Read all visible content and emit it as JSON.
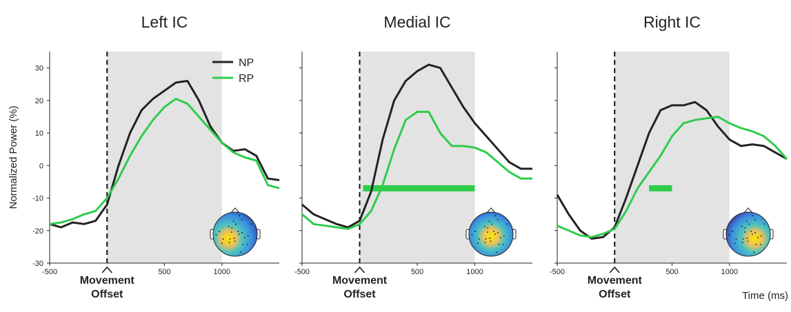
{
  "chart_data": [
    {
      "type": "line",
      "title": "Left IC",
      "ylabel": "Normalized Power (%)",
      "x": [
        -500,
        -400,
        -300,
        -200,
        -100,
        0,
        100,
        200,
        300,
        400,
        500,
        600,
        700,
        800,
        900,
        1000,
        1100,
        1200,
        1300,
        1400,
        1500
      ],
      "series": [
        {
          "name": "NP",
          "color": "#222222",
          "values": [
            -18,
            -19,
            -17.5,
            -18,
            -17,
            -12,
            0,
            10,
            17,
            20.5,
            23,
            25.5,
            26,
            20,
            12,
            7,
            4.5,
            5,
            3,
            -4,
            -4.5
          ]
        },
        {
          "name": "RP",
          "color": "#2ecc4a",
          "values": [
            -18,
            -17.5,
            -16.5,
            -15,
            -14,
            -10,
            -4,
            3,
            9,
            14,
            18,
            20.5,
            19,
            15,
            11,
            7,
            4,
            2.5,
            1.5,
            -6,
            -7
          ]
        }
      ],
      "shaded": [
        0,
        1000
      ],
      "event_x": 0,
      "event_label": [
        "Movement",
        "Offset"
      ],
      "xlim": [
        -500,
        1500
      ],
      "xticks": [
        -500,
        500,
        1000
      ],
      "ylim": [
        -30,
        35
      ],
      "yticks": [
        -30,
        -20,
        -10,
        0,
        10,
        20,
        30
      ],
      "legend": true
    },
    {
      "type": "line",
      "title": "Medial IC",
      "x": [
        -500,
        -400,
        -300,
        -200,
        -100,
        0,
        100,
        200,
        300,
        400,
        500,
        600,
        700,
        800,
        900,
        1000,
        1100,
        1200,
        1300,
        1400,
        1500
      ],
      "series": [
        {
          "color": "#222222",
          "values": [
            -12,
            -15,
            -16.5,
            -18,
            -19,
            -17,
            -8,
            8,
            20,
            26,
            29,
            31,
            30,
            24,
            18,
            13,
            9,
            5,
            1,
            -1,
            -1
          ]
        },
        {
          "color": "#2ecc4a",
          "values": [
            -15,
            -18,
            -18.5,
            -19,
            -19.5,
            -18,
            -14,
            -6,
            5,
            14,
            16.5,
            16.5,
            10,
            6,
            6,
            5.5,
            4,
            1,
            -2,
            -4,
            -4
          ]
        }
      ],
      "shaded": [
        0,
        1000
      ],
      "event_x": 0,
      "event_label": [
        "Movement",
        "Offset"
      ],
      "significance": {
        "x": [
          30,
          1000
        ],
        "y": -7,
        "color": "#2ecc4a"
      },
      "xlim": [
        -500,
        1500
      ],
      "xticks": [
        -500,
        500,
        1000
      ],
      "ylim": [
        -30,
        35
      ],
      "ytick_marks": [
        -30,
        -20,
        -10,
        0,
        10,
        20,
        30
      ]
    },
    {
      "type": "line",
      "title": "Right IC",
      "xlabel": "Time (ms)",
      "x": [
        -500,
        -400,
        -300,
        -200,
        -100,
        0,
        100,
        200,
        300,
        400,
        500,
        600,
        700,
        800,
        900,
        1000,
        1100,
        1200,
        1300,
        1400,
        1500
      ],
      "series": [
        {
          "color": "#222222",
          "values": [
            -9,
            -15,
            -20,
            -22.5,
            -22,
            -19,
            -10,
            0,
            10,
            17,
            18.5,
            18.5,
            19.5,
            17,
            12,
            8,
            6,
            6.5,
            6,
            4,
            2
          ]
        },
        {
          "color": "#2ecc4a",
          "values": [
            -18.5,
            -20,
            -21.5,
            -22,
            -21,
            -19.5,
            -14,
            -7,
            -2,
            3,
            9,
            13,
            14,
            14.5,
            15,
            13,
            11.5,
            10.5,
            9,
            6,
            2
          ]
        }
      ],
      "shaded": [
        0,
        1000
      ],
      "event_x": 0,
      "event_label": [
        "Movement",
        "Offset"
      ],
      "significance": {
        "x": [
          300,
          500
        ],
        "y": -7,
        "color": "#2ecc4a"
      },
      "xlim": [
        -500,
        1500
      ],
      "xticks": [
        -500,
        500,
        1000
      ],
      "ylim": [
        -30,
        35
      ],
      "ytick_marks": [
        -30,
        -20,
        -10,
        0,
        10,
        20,
        30
      ]
    }
  ]
}
